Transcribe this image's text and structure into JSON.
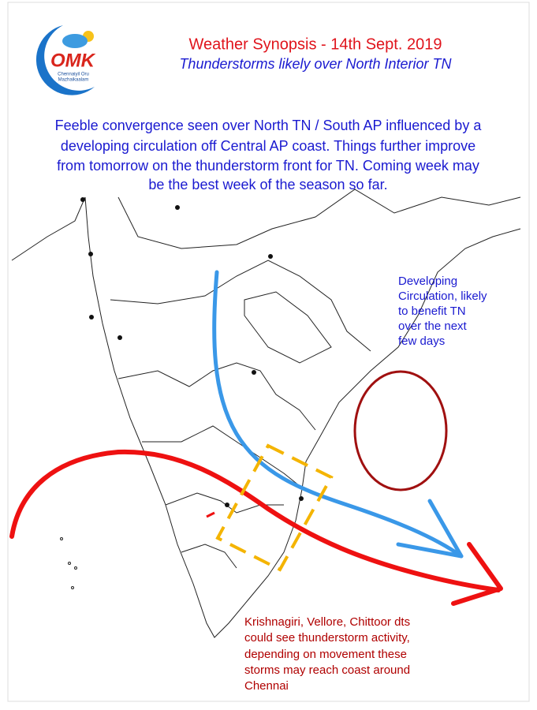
{
  "logo": {
    "text": "OMK",
    "caption_lines": [
      "Chennaiyil Oru",
      "Mazhaikaalam"
    ]
  },
  "header": {
    "title": "Weather Synopsis - 14th Sept. 2019",
    "subtitle": "Thunderstorms likely over North Interior TN"
  },
  "summary_lines": [
    "Feeble convergence seen over North TN / South AP influenced by a",
    "developing circulation off Central AP coast. Things further improve",
    "from tomorrow on the thunderstorm front for TN. Coming week may",
    "be the best week of the season so far."
  ],
  "annotations": [
    {
      "lines": [
        "Developing",
        "Circulation, likely",
        "to benefit TN",
        "over the next",
        "few days"
      ]
    },
    {
      "lines": [
        "Krishnagiri, Vellore, Chittoor dts",
        "could see thunderstorm activity,",
        "depending on movement these",
        "storms may reach coast around",
        "Chennai"
      ]
    }
  ]
}
